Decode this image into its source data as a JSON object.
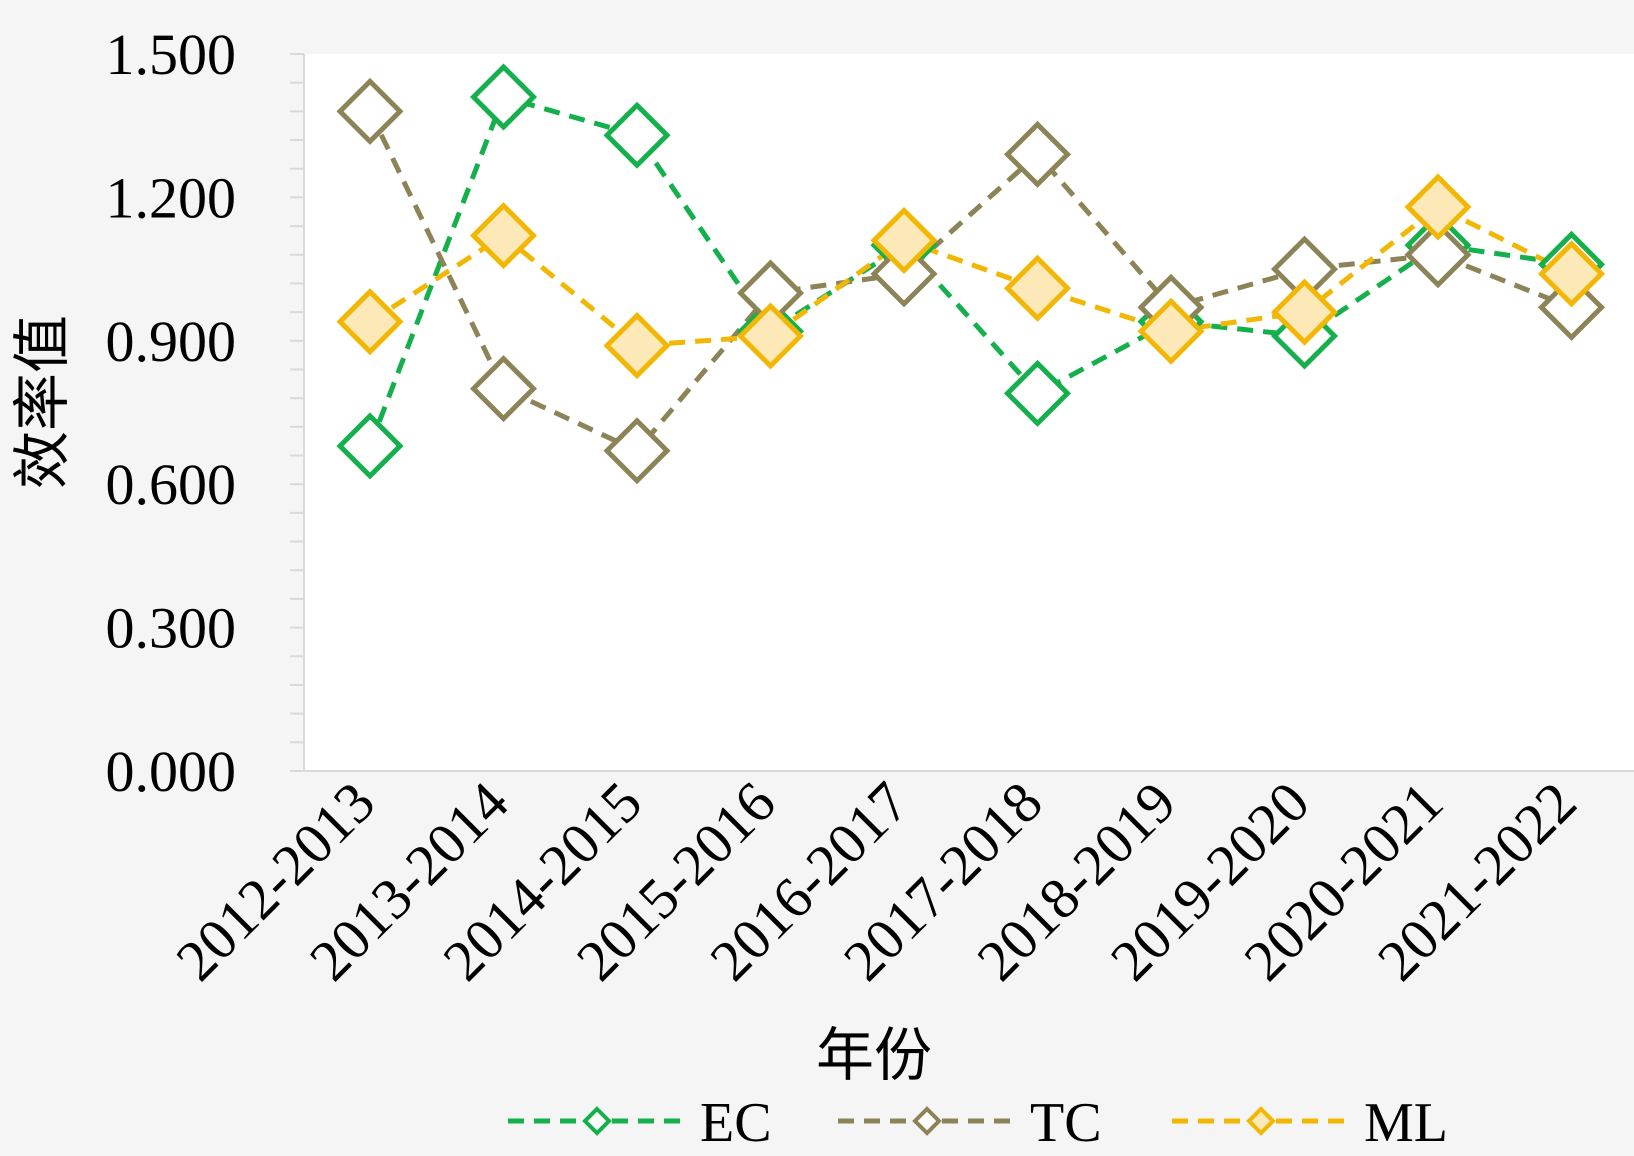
{
  "chart_data": {
    "type": "line",
    "title": "",
    "xlabel": "年份",
    "ylabel": "效率值",
    "categories": [
      "2012-2013",
      "2013-2014",
      "2014-2015",
      "2015-2016",
      "2016-2017",
      "2017-2018",
      "2018-2019",
      "2019-2020",
      "2020-2021",
      "2021-2022"
    ],
    "ylim": [
      0,
      1.5
    ],
    "yticks": [
      "0.000",
      "0.300",
      "0.600",
      "0.900",
      "1.200",
      "1.500"
    ],
    "ytick_values": [
      0,
      0.3,
      0.6,
      0.9,
      1.2,
      1.5
    ],
    "grid": false,
    "legend_position": "bottom",
    "series": [
      {
        "name": "EC",
        "color": "#14b04c",
        "marker_fill": "#ffffff",
        "values": [
          0.68,
          1.41,
          1.33,
          0.92,
          1.1,
          0.79,
          0.94,
          0.91,
          1.1,
          1.06
        ]
      },
      {
        "name": "TC",
        "color": "#8c8457",
        "marker_fill": "#ffffff",
        "values": [
          1.38,
          0.8,
          0.67,
          1.0,
          1.04,
          1.29,
          0.97,
          1.05,
          1.08,
          0.97
        ]
      },
      {
        "name": "ML",
        "color": "#f2b705",
        "marker_fill": "#fde9b8",
        "values": [
          0.94,
          1.12,
          0.89,
          0.91,
          1.11,
          1.01,
          0.92,
          0.96,
          1.18,
          1.04
        ]
      }
    ]
  }
}
